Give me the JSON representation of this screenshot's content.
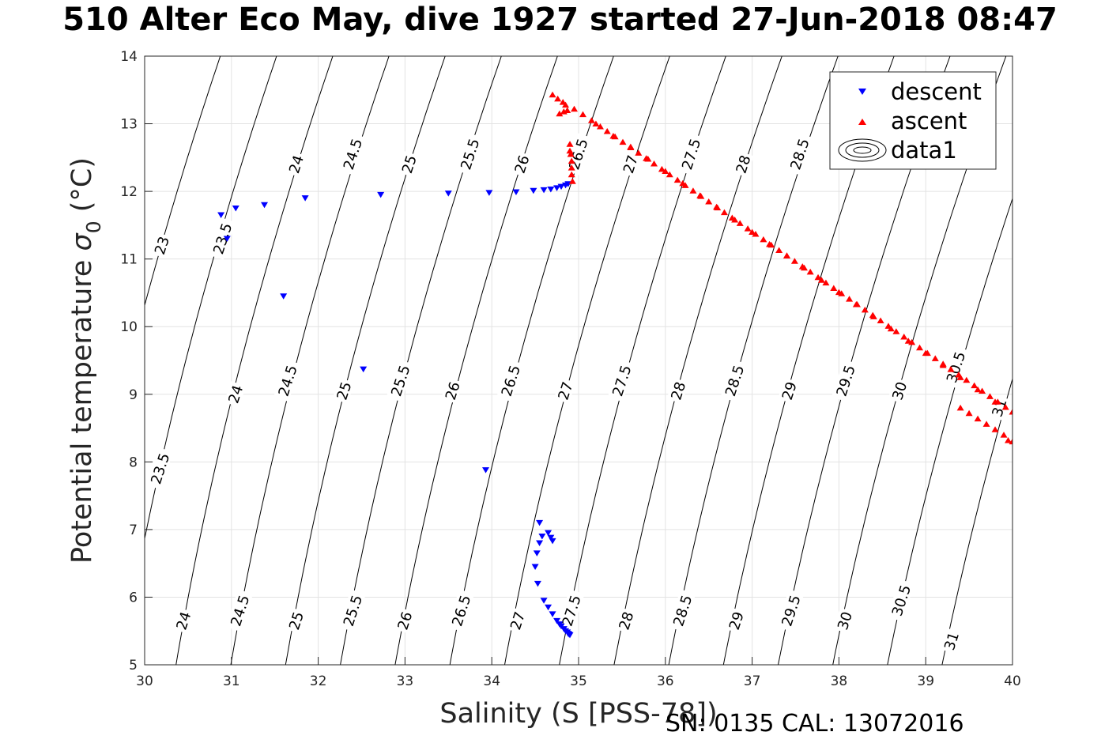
{
  "chart_data": {
    "type": "scatter",
    "title": "510 Alter Eco May, dive 1927 started 27-Jun-2018 08:47",
    "xlabel": "Salinity (S [PSS-78])",
    "ylabel_main": "Potential temperature ",
    "ylabel_symbol": "σ",
    "ylabel_subscript": "0",
    "ylabel_units": " (°C)",
    "footer": "SN: 0135  CAL: 13072016",
    "xlim": [
      30,
      40
    ],
    "ylim": [
      5,
      14
    ],
    "xticks": [
      30,
      31,
      32,
      33,
      34,
      35,
      36,
      37,
      38,
      39,
      40
    ],
    "yticks": [
      5,
      6,
      7,
      8,
      9,
      10,
      11,
      12,
      13,
      14
    ],
    "grid": true,
    "legend_position": "top-right",
    "legend": [
      {
        "name": "descent",
        "marker": "triangle-down",
        "color": "#0000ff"
      },
      {
        "name": "ascent",
        "marker": "triangle-up",
        "color": "#ff0000"
      },
      {
        "name": "data1",
        "marker": "contour",
        "color": "#000000"
      }
    ],
    "contours": {
      "levels": [
        23,
        23.5,
        24,
        24.5,
        25,
        25.5,
        26,
        26.5,
        27,
        27.5,
        28,
        28.5,
        29,
        29.5,
        30,
        30.5,
        31
      ],
      "labels": [
        {
          "text": "23",
          "s": 30.2,
          "t": 11.2
        },
        {
          "text": "23.5",
          "s": 30.9,
          "t": 11.3
        },
        {
          "text": "24",
          "s": 31.75,
          "t": 12.4
        },
        {
          "text": "24.5",
          "s": 32.4,
          "t": 12.55
        },
        {
          "text": "25",
          "s": 33.05,
          "t": 12.4
        },
        {
          "text": "25.5",
          "s": 33.75,
          "t": 12.55
        },
        {
          "text": "26",
          "s": 34.35,
          "t": 12.4
        },
        {
          "text": "26.5",
          "s": 35.0,
          "t": 12.55
        },
        {
          "text": "27",
          "s": 35.6,
          "t": 12.4
        },
        {
          "text": "27.5",
          "s": 36.3,
          "t": 12.55
        },
        {
          "text": "28",
          "s": 36.9,
          "t": 12.4
        },
        {
          "text": "28.5",
          "s": 37.55,
          "t": 12.55
        },
        {
          "text": "23.5",
          "s": 30.18,
          "t": 7.9
        },
        {
          "text": "24",
          "s": 31.05,
          "t": 9.0
        },
        {
          "text": "24.5",
          "s": 31.65,
          "t": 9.2
        },
        {
          "text": "25",
          "s": 32.3,
          "t": 9.05
        },
        {
          "text": "25.5",
          "s": 32.95,
          "t": 9.2
        },
        {
          "text": "26",
          "s": 33.55,
          "t": 9.05
        },
        {
          "text": "26.5",
          "s": 34.22,
          "t": 9.2
        },
        {
          "text": "27",
          "s": 34.85,
          "t": 9.05
        },
        {
          "text": "27.5",
          "s": 35.5,
          "t": 9.2
        },
        {
          "text": "28",
          "s": 36.15,
          "t": 9.05
        },
        {
          "text": "28.5",
          "s": 36.8,
          "t": 9.2
        },
        {
          "text": "29",
          "s": 37.43,
          "t": 9.05
        },
        {
          "text": "29.5",
          "s": 38.08,
          "t": 9.2
        },
        {
          "text": "30",
          "s": 38.7,
          "t": 9.05
        },
        {
          "text": "30.5",
          "s": 39.35,
          "t": 9.4
        },
        {
          "text": "31",
          "s": 39.85,
          "t": 8.8
        },
        {
          "text": "24",
          "s": 30.45,
          "t": 5.65
        },
        {
          "text": "24.5",
          "s": 31.1,
          "t": 5.8
        },
        {
          "text": "25",
          "s": 31.75,
          "t": 5.65
        },
        {
          "text": "25.5",
          "s": 32.4,
          "t": 5.8
        },
        {
          "text": "26",
          "s": 33.0,
          "t": 5.65
        },
        {
          "text": "26.5",
          "s": 33.65,
          "t": 5.8
        },
        {
          "text": "27",
          "s": 34.3,
          "t": 5.65
        },
        {
          "text": "27.5",
          "s": 34.92,
          "t": 5.8
        },
        {
          "text": "28",
          "s": 35.55,
          "t": 5.65
        },
        {
          "text": "28.5",
          "s": 36.2,
          "t": 5.8
        },
        {
          "text": "29",
          "s": 36.82,
          "t": 5.65
        },
        {
          "text": "29.5",
          "s": 37.45,
          "t": 5.8
        },
        {
          "text": "30",
          "s": 38.07,
          "t": 5.65
        },
        {
          "text": "30.5",
          "s": 38.72,
          "t": 5.95
        },
        {
          "text": "31",
          "s": 39.3,
          "t": 5.35
        }
      ]
    },
    "series": [
      {
        "name": "descent",
        "color": "#0000ff",
        "marker": "triangle-down",
        "points": [
          [
            30.88,
            11.65
          ],
          [
            30.95,
            11.3
          ],
          [
            31.05,
            11.75
          ],
          [
            31.38,
            11.8
          ],
          [
            31.85,
            11.9
          ],
          [
            31.6,
            10.45
          ],
          [
            32.52,
            9.37
          ],
          [
            32.72,
            11.95
          ],
          [
            33.5,
            11.97
          ],
          [
            33.97,
            11.98
          ],
          [
            34.28,
            11.99
          ],
          [
            34.48,
            12.01
          ],
          [
            34.6,
            12.02
          ],
          [
            34.68,
            12.03
          ],
          [
            34.75,
            12.05
          ],
          [
            34.8,
            12.07
          ],
          [
            34.85,
            12.09
          ],
          [
            34.88,
            12.11
          ],
          [
            33.93,
            7.88
          ],
          [
            34.55,
            7.1
          ],
          [
            34.65,
            6.95
          ],
          [
            34.58,
            6.9
          ],
          [
            34.68,
            6.88
          ],
          [
            34.7,
            6.83
          ],
          [
            34.55,
            6.8
          ],
          [
            34.52,
            6.65
          ],
          [
            34.5,
            6.45
          ],
          [
            34.53,
            6.2
          ],
          [
            34.6,
            5.95
          ],
          [
            34.65,
            5.85
          ],
          [
            34.7,
            5.75
          ],
          [
            34.75,
            5.65
          ],
          [
            34.78,
            5.6
          ],
          [
            34.8,
            5.57
          ],
          [
            34.83,
            5.53
          ],
          [
            34.85,
            5.5
          ],
          [
            34.87,
            5.48
          ],
          [
            34.88,
            5.46
          ],
          [
            34.89,
            5.45
          ],
          [
            34.9,
            5.44
          ]
        ]
      },
      {
        "name": "ascent",
        "color": "#ff0000",
        "marker": "triangle-up",
        "points": [
          [
            34.7,
            13.43
          ],
          [
            34.76,
            13.37
          ],
          [
            34.82,
            13.32
          ],
          [
            34.85,
            13.28
          ],
          [
            34.78,
            13.15
          ],
          [
            34.83,
            13.18
          ],
          [
            34.87,
            13.2
          ],
          [
            34.9,
            12.7
          ],
          [
            34.91,
            12.55
          ],
          [
            34.92,
            12.45
          ],
          [
            34.92,
            12.35
          ],
          [
            34.92,
            12.25
          ],
          [
            34.93,
            12.15
          ],
          [
            34.9,
            12.6
          ],
          [
            34.95,
            13.22
          ],
          [
            35.05,
            13.14
          ],
          [
            35.15,
            13.05
          ],
          [
            35.25,
            12.96
          ],
          [
            35.33,
            12.89
          ],
          [
            35.42,
            12.81
          ],
          [
            35.51,
            12.73
          ],
          [
            35.6,
            12.65
          ],
          [
            35.69,
            12.57
          ],
          [
            35.78,
            12.49
          ],
          [
            35.87,
            12.41
          ],
          [
            35.96,
            12.33
          ],
          [
            36.05,
            12.25
          ],
          [
            36.14,
            12.17
          ],
          [
            36.23,
            12.09
          ],
          [
            36.32,
            12.01
          ],
          [
            36.41,
            11.93
          ],
          [
            36.5,
            11.85
          ],
          [
            36.59,
            11.77
          ],
          [
            36.68,
            11.69
          ],
          [
            36.77,
            11.61
          ],
          [
            36.86,
            11.53
          ],
          [
            36.95,
            11.45
          ],
          [
            37.04,
            11.37
          ],
          [
            37.13,
            11.29
          ],
          [
            37.22,
            11.21
          ],
          [
            37.31,
            11.13
          ],
          [
            37.4,
            11.05
          ],
          [
            37.49,
            10.97
          ],
          [
            37.58,
            10.89
          ],
          [
            37.67,
            10.81
          ],
          [
            37.76,
            10.73
          ],
          [
            37.85,
            10.65
          ],
          [
            37.94,
            10.57
          ],
          [
            38.03,
            10.49
          ],
          [
            38.12,
            10.41
          ],
          [
            38.21,
            10.33
          ],
          [
            38.3,
            10.25
          ],
          [
            38.39,
            10.17
          ],
          [
            38.48,
            10.09
          ],
          [
            38.57,
            10.01
          ],
          [
            38.66,
            9.93
          ],
          [
            38.75,
            9.85
          ],
          [
            38.84,
            9.77
          ],
          [
            38.93,
            9.69
          ],
          [
            39.02,
            9.61
          ],
          [
            39.11,
            9.53
          ],
          [
            39.2,
            9.45
          ],
          [
            39.29,
            9.37
          ],
          [
            39.38,
            9.29
          ],
          [
            39.47,
            9.21
          ],
          [
            39.56,
            9.13
          ],
          [
            39.65,
            9.05
          ],
          [
            39.74,
            8.97
          ],
          [
            39.83,
            8.89
          ],
          [
            39.92,
            8.81
          ],
          [
            40.0,
            8.74
          ],
          [
            35.2,
            13.0
          ],
          [
            35.4,
            12.82
          ],
          [
            35.6,
            12.66
          ],
          [
            35.8,
            12.48
          ],
          [
            36.0,
            12.3
          ],
          [
            36.2,
            12.12
          ],
          [
            36.4,
            11.94
          ],
          [
            36.6,
            11.76
          ],
          [
            36.8,
            11.58
          ],
          [
            37.0,
            11.4
          ],
          [
            37.2,
            11.22
          ],
          [
            37.4,
            11.05
          ],
          [
            37.6,
            10.87
          ],
          [
            37.8,
            10.69
          ],
          [
            38.0,
            10.51
          ],
          [
            38.2,
            10.33
          ],
          [
            38.4,
            10.15
          ],
          [
            38.6,
            9.97
          ],
          [
            38.8,
            9.79
          ],
          [
            39.0,
            9.61
          ],
          [
            39.2,
            9.43
          ],
          [
            39.4,
            9.25
          ],
          [
            39.6,
            9.07
          ],
          [
            39.8,
            8.89
          ],
          [
            39.95,
            8.32
          ],
          [
            40.0,
            8.3
          ],
          [
            39.9,
            8.4
          ],
          [
            39.8,
            8.48
          ],
          [
            39.7,
            8.56
          ],
          [
            39.6,
            8.64
          ],
          [
            39.5,
            8.72
          ],
          [
            39.4,
            8.8
          ]
        ]
      }
    ]
  }
}
